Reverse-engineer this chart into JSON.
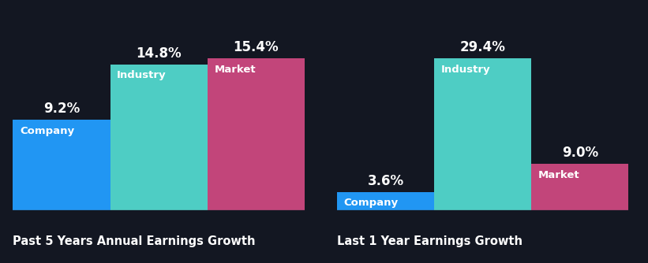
{
  "background_color": "#131722",
  "chart1_title": "Past 5 Years Annual Earnings Growth",
  "chart2_title": "Last 1 Year Earnings Growth",
  "chart1_values": [
    9.2,
    14.8,
    15.4
  ],
  "chart2_values": [
    3.6,
    29.4,
    9.0
  ],
  "labels": [
    "Company",
    "Industry",
    "Market"
  ],
  "colors": [
    "#2196f3",
    "#4ecdc4",
    "#c2457a"
  ],
  "value_labels": [
    "9.2%",
    "14.8%",
    "15.4%",
    "3.6%",
    "29.4%",
    "9.0%"
  ],
  "title_color": "#ffffff",
  "label_color": "#ffffff",
  "value_color": "#ffffff",
  "title_fontsize": 10.5,
  "value_fontsize": 12,
  "bar_label_fontsize": 9.5,
  "divider_color": "#2a2e3a"
}
